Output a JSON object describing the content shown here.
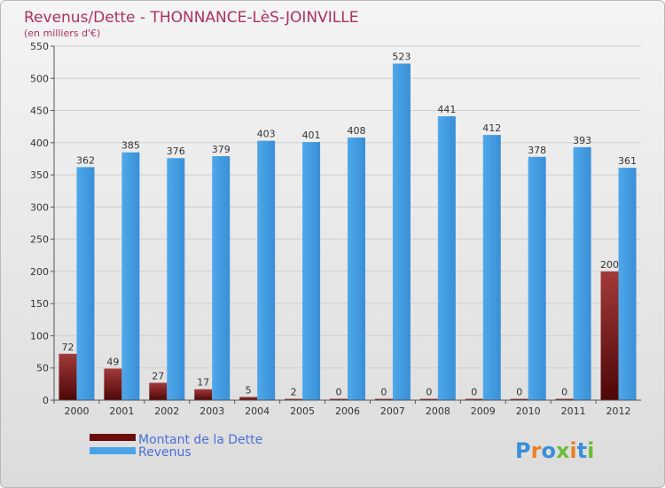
{
  "chart_data": {
    "type": "bar",
    "title": "Revenus/Dette - THONNANCE-LèS-JOINVILLE",
    "subtitle": "(en milliers d'€)",
    "categories": [
      "2000",
      "2001",
      "2002",
      "2003",
      "2004",
      "2005",
      "2006",
      "2007",
      "2008",
      "2009",
      "2010",
      "2011",
      "2012"
    ],
    "series": [
      {
        "name": "Montant de la Dette",
        "color": "#7a1010",
        "values": [
          72,
          49,
          27,
          17,
          5,
          2,
          0,
          0,
          0,
          0,
          0,
          0,
          200
        ]
      },
      {
        "name": "Revenus",
        "color": "#4aa3e6",
        "values": [
          362,
          385,
          376,
          379,
          403,
          401,
          408,
          523,
          441,
          412,
          378,
          393,
          361
        ]
      }
    ],
    "ylim": [
      0,
      550
    ],
    "yticks": [
      0,
      50,
      100,
      150,
      200,
      250,
      300,
      350,
      400,
      450,
      500,
      550
    ],
    "grid": true,
    "legend_position": "bottom-left"
  },
  "logo": {
    "letters": [
      {
        "ch": "P",
        "color": "#3a8fd8"
      },
      {
        "ch": "r",
        "color": "#e8812a"
      },
      {
        "ch": "o",
        "color": "#3a8fd8"
      },
      {
        "ch": "x",
        "color": "#6cbd3b"
      },
      {
        "ch": "i",
        "color": "#e8812a"
      },
      {
        "ch": "t",
        "color": "#3a8fd8"
      },
      {
        "ch": "i",
        "color": "#6cbd3b"
      }
    ]
  }
}
